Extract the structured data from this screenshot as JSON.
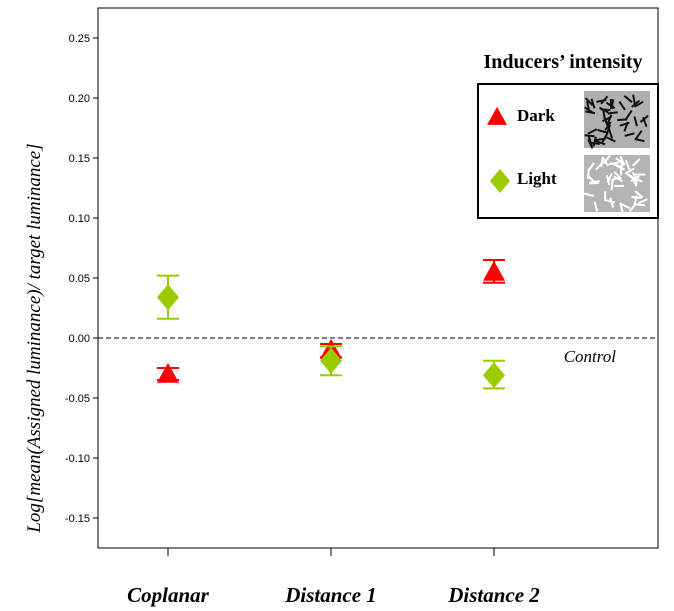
{
  "chart_data": {
    "type": "scatter",
    "ylabel": "Log[mean(Assigned luminance)/  target luminance]",
    "xlabel": "",
    "categories": [
      "Coplanar",
      "Distance 1",
      "Distance 2"
    ],
    "ylim": [
      -0.175,
      0.275
    ],
    "yticks": [
      0.25,
      0.2,
      0.15,
      0.1,
      0.05,
      0.0,
      -0.05,
      -0.1,
      -0.15
    ],
    "ytick_labels": [
      "0.25",
      "0.20",
      "0.15",
      "0.10",
      "0.05",
      "0.00",
      "-0.05",
      "-0.10",
      "-0.15"
    ],
    "reference_line": {
      "value": 0.0,
      "label": "Control",
      "style": "dashed"
    },
    "legend": {
      "title": "Inducers’ intensity",
      "position": "top-right"
    },
    "series": [
      {
        "name": "Dark",
        "marker": "triangle",
        "color": "#ff0000",
        "values": [
          -0.031,
          -0.011,
          0.054
        ],
        "err_low": [
          -0.035,
          -0.016,
          0.046
        ],
        "err_high": [
          -0.025,
          -0.005,
          0.065
        ]
      },
      {
        "name": "Light",
        "marker": "diamond",
        "color": "#99cc00",
        "values": [
          0.034,
          -0.019,
          -0.031
        ],
        "err_low": [
          0.016,
          -0.031,
          -0.042
        ],
        "err_high": [
          0.052,
          -0.007,
          -0.019
        ]
      }
    ],
    "grid": false
  }
}
